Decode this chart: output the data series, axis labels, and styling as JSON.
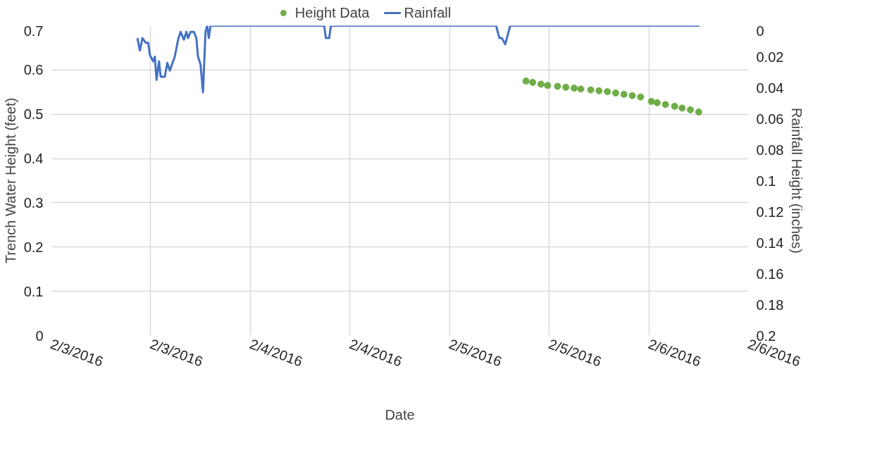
{
  "chart_data": {
    "type": "line",
    "xlabel": "Date",
    "ylabel": "Trench Water Height (feet)",
    "y2label": "Rainfall Height (inches)",
    "xlim": [
      "2016-02-03T00:00",
      "2016-02-06T12:00"
    ],
    "xticks": [
      {
        "value": "2016-02-03T00:00",
        "label": "2/3/2016"
      },
      {
        "value": "2016-02-03T12:00",
        "label": "2/3/2016"
      },
      {
        "value": "2016-02-04T00:00",
        "label": "2/4/2016"
      },
      {
        "value": "2016-02-04T12:00",
        "label": "2/4/2016"
      },
      {
        "value": "2016-02-05T00:00",
        "label": "2/5/2016"
      },
      {
        "value": "2016-02-05T12:00",
        "label": "2/5/2016"
      },
      {
        "value": "2016-02-06T00:00",
        "label": "2/6/2016"
      },
      {
        "value": "2016-02-06T12:00",
        "label": "2/6/2016"
      }
    ],
    "ylim": [
      0,
      0.7
    ],
    "yticks": [
      0,
      0.1,
      0.2,
      0.3,
      0.4,
      0.5,
      0.6,
      0.7
    ],
    "y2lim": [
      0.2,
      0
    ],
    "y2ticks": [
      0.2,
      0.18,
      0.16,
      0.14,
      0.12,
      0.1,
      0.08,
      0.06,
      0.04,
      0.02,
      0
    ],
    "grid": true,
    "legend": "top",
    "series": [
      {
        "name": "Height Data",
        "type": "scatter",
        "marker": "circle",
        "color": "#70ad47",
        "x": [
          "2016-02-05T09:12",
          "2016-02-05T10:00",
          "2016-02-05T11:00",
          "2016-02-05T11:48",
          "2016-02-05T13:00",
          "2016-02-05T14:00",
          "2016-02-05T15:00",
          "2016-02-05T15:48",
          "2016-02-05T17:00",
          "2016-02-05T18:00",
          "2016-02-05T19:00",
          "2016-02-05T20:00",
          "2016-02-05T21:00",
          "2016-02-05T22:00",
          "2016-02-05T23:00",
          "2016-02-06T00:18",
          "2016-02-06T01:00",
          "2016-02-06T02:00",
          "2016-02-06T03:06",
          "2016-02-06T04:00",
          "2016-02-06T05:00",
          "2016-02-06T06:00"
        ],
        "values": [
          0.575,
          0.572,
          0.568,
          0.565,
          0.563,
          0.561,
          0.559,
          0.557,
          0.555,
          0.553,
          0.551,
          0.548,
          0.545,
          0.542,
          0.539,
          0.529,
          0.526,
          0.522,
          0.518,
          0.514,
          0.51,
          0.505
        ]
      },
      {
        "name": "Rainfall",
        "axis": "y2",
        "color": "#4472c4",
        "x": [
          "2016-02-03T10:24",
          "2016-02-03T10:42",
          "2016-02-03T11:00",
          "2016-02-03T11:24",
          "2016-02-03T11:42",
          "2016-02-03T11:54",
          "2016-02-03T12:18",
          "2016-02-03T12:30",
          "2016-02-03T12:42",
          "2016-02-03T13:00",
          "2016-02-03T13:12",
          "2016-02-03T13:42",
          "2016-02-03T14:00",
          "2016-02-03T14:18",
          "2016-02-03T14:54",
          "2016-02-03T15:18",
          "2016-02-03T15:36",
          "2016-02-03T16:00",
          "2016-02-03T16:18",
          "2016-02-03T16:30",
          "2016-02-03T16:48",
          "2016-02-03T17:12",
          "2016-02-03T17:30",
          "2016-02-03T17:42",
          "2016-02-03T18:00",
          "2016-02-03T18:18",
          "2016-02-03T18:36",
          "2016-02-03T18:48",
          "2016-02-03T19:00",
          "2016-02-03T19:12",
          "2016-02-04T08:54",
          "2016-02-04T09:06",
          "2016-02-04T09:30",
          "2016-02-04T09:42",
          "2016-02-05T05:36",
          "2016-02-05T06:00",
          "2016-02-05T06:18",
          "2016-02-05T06:42",
          "2016-02-05T06:54",
          "2016-02-05T07:18",
          "2016-02-06T06:06"
        ],
        "values": [
          0.008,
          0.016,
          0.008,
          0.011,
          0.011,
          0.019,
          0.023,
          0.02,
          0.035,
          0.023,
          0.033,
          0.033,
          0.024,
          0.029,
          0.02,
          0.009,
          0.004,
          0.009,
          0.004,
          0.008,
          0.004,
          0.004,
          0.008,
          0.02,
          0.025,
          0.043,
          0.004,
          0,
          0.008,
          0,
          0,
          0.008,
          0.008,
          0,
          0,
          0.008,
          0.008,
          0.012,
          0.008,
          0,
          0
        ]
      }
    ]
  }
}
